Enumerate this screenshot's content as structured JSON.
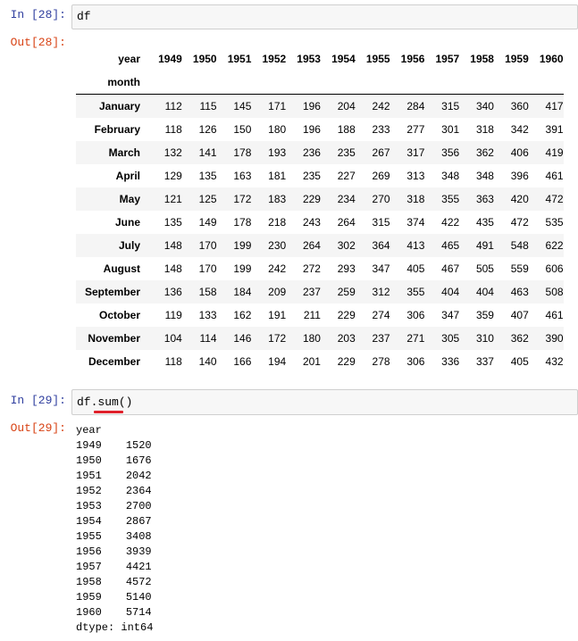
{
  "cell28": {
    "in_prompt": "In  [28]:",
    "code": "df",
    "out_prompt": "Out[28]:"
  },
  "table": {
    "columns_label": "year",
    "index_label": "month",
    "columns": [
      "1949",
      "1950",
      "1951",
      "1952",
      "1953",
      "1954",
      "1955",
      "1956",
      "1957",
      "1958",
      "1959",
      "1960"
    ],
    "rows": [
      {
        "month": "January",
        "values": [
          "112",
          "115",
          "145",
          "171",
          "196",
          "204",
          "242",
          "284",
          "315",
          "340",
          "360",
          "417"
        ]
      },
      {
        "month": "February",
        "values": [
          "118",
          "126",
          "150",
          "180",
          "196",
          "188",
          "233",
          "277",
          "301",
          "318",
          "342",
          "391"
        ]
      },
      {
        "month": "March",
        "values": [
          "132",
          "141",
          "178",
          "193",
          "236",
          "235",
          "267",
          "317",
          "356",
          "362",
          "406",
          "419"
        ]
      },
      {
        "month": "April",
        "values": [
          "129",
          "135",
          "163",
          "181",
          "235",
          "227",
          "269",
          "313",
          "348",
          "348",
          "396",
          "461"
        ]
      },
      {
        "month": "May",
        "values": [
          "121",
          "125",
          "172",
          "183",
          "229",
          "234",
          "270",
          "318",
          "355",
          "363",
          "420",
          "472"
        ]
      },
      {
        "month": "June",
        "values": [
          "135",
          "149",
          "178",
          "218",
          "243",
          "264",
          "315",
          "374",
          "422",
          "435",
          "472",
          "535"
        ]
      },
      {
        "month": "July",
        "values": [
          "148",
          "170",
          "199",
          "230",
          "264",
          "302",
          "364",
          "413",
          "465",
          "491",
          "548",
          "622"
        ]
      },
      {
        "month": "August",
        "values": [
          "148",
          "170",
          "199",
          "242",
          "272",
          "293",
          "347",
          "405",
          "467",
          "505",
          "559",
          "606"
        ]
      },
      {
        "month": "September",
        "values": [
          "136",
          "158",
          "184",
          "209",
          "237",
          "259",
          "312",
          "355",
          "404",
          "404",
          "463",
          "508"
        ]
      },
      {
        "month": "October",
        "values": [
          "119",
          "133",
          "162",
          "191",
          "211",
          "229",
          "274",
          "306",
          "347",
          "359",
          "407",
          "461"
        ]
      },
      {
        "month": "November",
        "values": [
          "104",
          "114",
          "146",
          "172",
          "180",
          "203",
          "237",
          "271",
          "305",
          "310",
          "362",
          "390"
        ]
      },
      {
        "month": "December",
        "values": [
          "118",
          "140",
          "166",
          "194",
          "201",
          "229",
          "278",
          "306",
          "336",
          "337",
          "405",
          "432"
        ]
      }
    ]
  },
  "cell29": {
    "in_prompt": "In  [29]:",
    "code_prefix": "df.",
    "code_method": "sum",
    "code_suffix": "()",
    "out_prompt": "Out[29]:",
    "series_header": "year",
    "series": [
      {
        "index": "1949",
        "value": "1520"
      },
      {
        "index": "1950",
        "value": "1676"
      },
      {
        "index": "1951",
        "value": "2042"
      },
      {
        "index": "1952",
        "value": "2364"
      },
      {
        "index": "1953",
        "value": "2700"
      },
      {
        "index": "1954",
        "value": "2867"
      },
      {
        "index": "1955",
        "value": "3408"
      },
      {
        "index": "1956",
        "value": "3939"
      },
      {
        "index": "1957",
        "value": "4421"
      },
      {
        "index": "1958",
        "value": "4572"
      },
      {
        "index": "1959",
        "value": "5140"
      },
      {
        "index": "1960",
        "value": "5714"
      }
    ],
    "dtype_line": "dtype: int64"
  },
  "colors": {
    "in_prompt": "#303f9f",
    "out_prompt": "#d84315",
    "underline": "#e0202a"
  }
}
